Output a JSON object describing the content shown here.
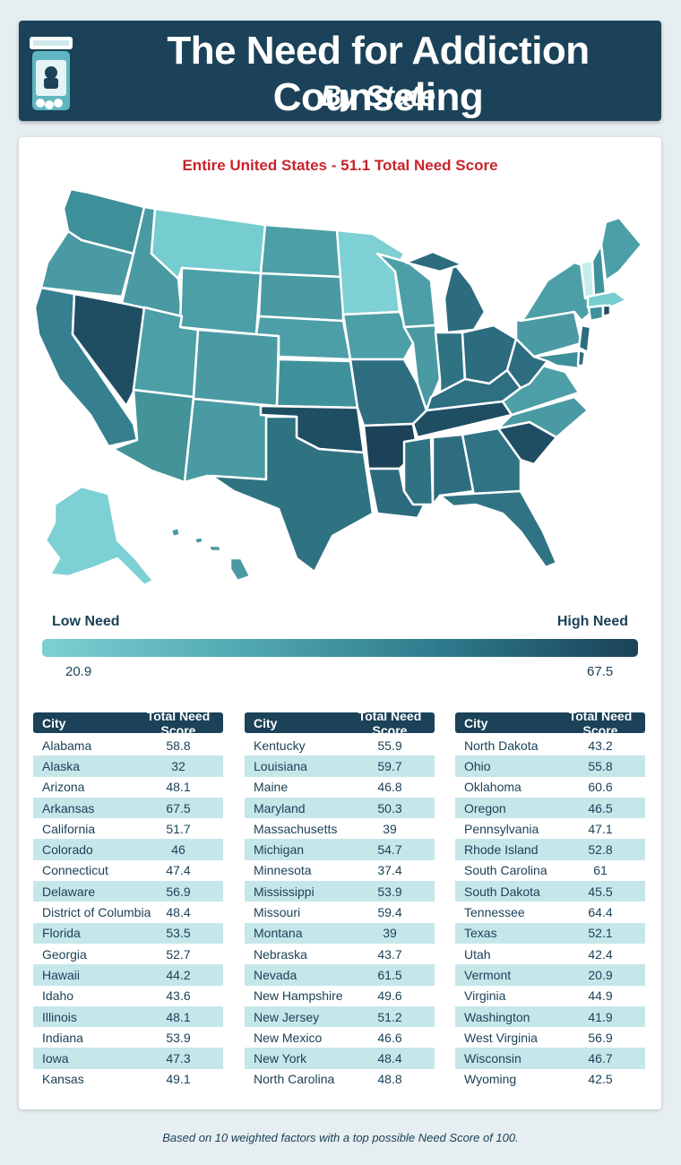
{
  "header": {
    "title": "The Need for Addiction Counseling",
    "subtitle": "By State",
    "icon": "pill-bottle-icon"
  },
  "map": {
    "title": "Entire United States - 51.1 Total Need Score",
    "title_color": "#c9242b"
  },
  "legend": {
    "low_label": "Low Need",
    "high_label": "High Need",
    "min_value": "20.9",
    "max_value": "67.5",
    "color_low": "#7dd0d3",
    "color_high": "#1b4258"
  },
  "tables": {
    "header_city": "City",
    "header_score": "Total Need Score",
    "columns": [
      [
        {
          "city": "Alabama",
          "score": "58.8"
        },
        {
          "city": "Alaska",
          "score": "32"
        },
        {
          "city": "Arizona",
          "score": "48.1"
        },
        {
          "city": "Arkansas",
          "score": "67.5"
        },
        {
          "city": "California",
          "score": "51.7"
        },
        {
          "city": "Colorado",
          "score": "46"
        },
        {
          "city": "Connecticut",
          "score": "47.4"
        },
        {
          "city": "Delaware",
          "score": "56.9"
        },
        {
          "city": "District of Columbia",
          "score": "48.4"
        },
        {
          "city": "Florida",
          "score": "53.5"
        },
        {
          "city": "Georgia",
          "score": "52.7"
        },
        {
          "city": "Hawaii",
          "score": "44.2"
        },
        {
          "city": "Idaho",
          "score": "43.6"
        },
        {
          "city": "Illinois",
          "score": "48.1"
        },
        {
          "city": "Indiana",
          "score": "53.9"
        },
        {
          "city": "Iowa",
          "score": "47.3"
        },
        {
          "city": "Kansas",
          "score": "49.1"
        }
      ],
      [
        {
          "city": "Kentucky",
          "score": "55.9"
        },
        {
          "city": "Louisiana",
          "score": "59.7"
        },
        {
          "city": "Maine",
          "score": "46.8"
        },
        {
          "city": "Maryland",
          "score": "50.3"
        },
        {
          "city": "Massachusetts",
          "score": "39"
        },
        {
          "city": "Michigan",
          "score": "54.7"
        },
        {
          "city": "Minnesota",
          "score": "37.4"
        },
        {
          "city": "Mississippi",
          "score": "53.9"
        },
        {
          "city": "Missouri",
          "score": "59.4"
        },
        {
          "city": "Montana",
          "score": "39"
        },
        {
          "city": "Nebraska",
          "score": "43.7"
        },
        {
          "city": "Nevada",
          "score": "61.5"
        },
        {
          "city": "New Hampshire",
          "score": "49.6"
        },
        {
          "city": "New Jersey",
          "score": "51.2"
        },
        {
          "city": "New Mexico",
          "score": "46.6"
        },
        {
          "city": "New York",
          "score": "48.4"
        },
        {
          "city": "North Carolina",
          "score": "48.8"
        }
      ],
      [
        {
          "city": "North Dakota",
          "score": "43.2"
        },
        {
          "city": "Ohio",
          "score": "55.8"
        },
        {
          "city": "Oklahoma",
          "score": "60.6"
        },
        {
          "city": "Oregon",
          "score": "46.5"
        },
        {
          "city": "Pennsylvania",
          "score": "47.1"
        },
        {
          "city": "Rhode Island",
          "score": "52.8"
        },
        {
          "city": "South Carolina",
          "score": "61"
        },
        {
          "city": "South Dakota",
          "score": "45.5"
        },
        {
          "city": "Tennessee",
          "score": "64.4"
        },
        {
          "city": "Texas",
          "score": "52.1"
        },
        {
          "city": "Utah",
          "score": "42.4"
        },
        {
          "city": "Vermont",
          "score": "20.9"
        },
        {
          "city": "Virginia",
          "score": "44.9"
        },
        {
          "city": "Washington",
          "score": "41.9"
        },
        {
          "city": "West Virginia",
          "score": "56.9"
        },
        {
          "city": "Wisconsin",
          "score": "46.7"
        },
        {
          "city": "Wyoming",
          "score": "42.5"
        }
      ]
    ]
  },
  "footnote": "Based on 10 weighted factors with a top possible Need Score of 100."
}
